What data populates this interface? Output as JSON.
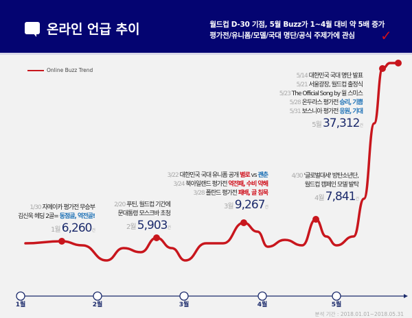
{
  "header": {
    "title": "온라인 언급 추이",
    "subtitle1": "월드컵 D-30 기점, 5월 Buzz가 1~4월 대비 약 5배 증가",
    "subtitle2": "평가전/유니폼/모델/국대 명단/공식 주제가에 관심",
    "icon": "speech-bubble-icon",
    "check_icon": "checkmark-icon"
  },
  "legend": "Online Buzz Trend",
  "colors": {
    "line": "#c8161d",
    "header": "#040471",
    "value": "#1b2a6b",
    "blue": "#1a6fb5",
    "red": "#d0101c"
  },
  "chart_data": {
    "type": "line",
    "series": [
      {
        "name": "Online Buzz Trend",
        "categories": [
          "1월",
          "2월",
          "3월",
          "4월",
          "5월"
        ],
        "values": [
          6260,
          5903,
          9267,
          7841,
          37312
        ]
      }
    ],
    "unit": "건",
    "x_ticks": [
      "1월",
      "2월",
      "3월",
      "4월",
      "5월"
    ]
  },
  "annotations": {
    "jan": {
      "lines": [
        {
          "d": "1/30",
          "t": "자메이카 평가전 무승부"
        },
        {
          "d": "",
          "t": "김신욱 헤딩 2골= ",
          "hl": "동점골, 역전골!"
        }
      ],
      "month": "1월",
      "value": "6,260",
      "unit": "건"
    },
    "feb": {
      "lines": [
        {
          "d": "2/20",
          "t": "푸틴, 월드컵 기간에"
        },
        {
          "d": "",
          "t": "문대통령 모스크바 초청"
        }
      ],
      "month": "2월",
      "value": "5,903",
      "unit": "건"
    },
    "mar": {
      "lines": [
        {
          "d": "3/22",
          "t": "대한민국 국대 유니폼 공개 ",
          "r": "별로",
          "mid": " vs ",
          "b": "괜춘"
        },
        {
          "d": "3/24",
          "t": "북아일랜드 평가전 ",
          "r": "역전패, 수비 약해"
        },
        {
          "d": "3/28",
          "t": "폴란드 평가전 ",
          "r": "패배, 골 침묵"
        }
      ],
      "month": "3월",
      "value": "9,267",
      "unit": "건"
    },
    "apr": {
      "lines": [
        {
          "d": "4/30",
          "t": "'글로벌대세' 방탄소년단,"
        },
        {
          "d": "",
          "t": "월드컵 캠페인 모델 발탁"
        }
      ],
      "month": "4월",
      "value": "7,841",
      "unit": "건"
    },
    "may": {
      "lines": [
        {
          "d": "5/14",
          "t": "대한민국 국대 명단 발표"
        },
        {
          "d": "5/21",
          "t": "서울광장, 월드컵 출정식"
        },
        {
          "d": "5/23",
          "t": "The Official Song by 윌 스미스"
        },
        {
          "d": "5/28",
          "t": "온두라스 평가전 ",
          "b": "승리, 기쁨"
        },
        {
          "d": "5/31",
          "t": "보스니아 평가전 ",
          "b": "응원, 기대"
        }
      ],
      "month": "5월",
      "value": "37,312",
      "unit": "건"
    }
  },
  "footer": "분석 기간 : 2018.01.01~2018.05.31"
}
